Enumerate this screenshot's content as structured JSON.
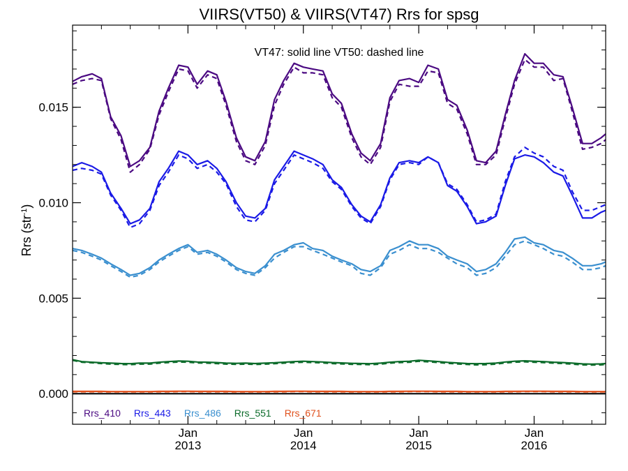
{
  "chart_data": {
    "type": "line",
    "title": "VIIRS(VT50) & VIIRS(VT47)  Rrs for spsg",
    "annotation": "VT47: solid line   VT50: dashed line",
    "ylabel_main": "Rrs (str",
    "ylabel_sup": "-1",
    "ylabel_close": ")",
    "ylim": [
      -0.0016,
      0.0193
    ],
    "xlim": [
      2012.0,
      2016.62
    ],
    "yticks": [
      0.0,
      0.005,
      0.01,
      0.015
    ],
    "ytick_labels": [
      "0.000",
      "0.005",
      "0.010",
      "0.015"
    ],
    "xticks": [
      2013.0,
      2014.0,
      2015.0,
      2016.0
    ],
    "xtick_labels_month": [
      "Jan",
      "Jan",
      "Jan",
      "Jan"
    ],
    "xtick_labels_year": [
      "2013",
      "2014",
      "2015",
      "2016"
    ],
    "zero_line": 0.0,
    "grid": false,
    "legend_position": "bottom-left",
    "line_styles": {
      "solid": "VT47",
      "dashed": "VT50"
    },
    "x": [
      2012.0,
      2012.08,
      2012.17,
      2012.25,
      2012.33,
      2012.42,
      2012.5,
      2012.58,
      2012.67,
      2012.75,
      2012.83,
      2012.92,
      2013.0,
      2013.08,
      2013.17,
      2013.25,
      2013.33,
      2013.42,
      2013.5,
      2013.58,
      2013.67,
      2013.75,
      2013.83,
      2013.92,
      2014.0,
      2014.08,
      2014.17,
      2014.25,
      2014.33,
      2014.42,
      2014.5,
      2014.58,
      2014.67,
      2014.75,
      2014.83,
      2014.92,
      2015.0,
      2015.08,
      2015.17,
      2015.25,
      2015.33,
      2015.42,
      2015.5,
      2015.58,
      2015.67,
      2015.75,
      2015.83,
      2015.92,
      2016.0,
      2016.08,
      2016.17,
      2016.25,
      2016.33,
      2016.42,
      2016.5,
      2016.58,
      2016.62
    ],
    "series": [
      {
        "name": "Rrs_410",
        "color": "#4b0a82",
        "solid": [
          0.01635,
          0.0166,
          0.01675,
          0.0165,
          0.0145,
          0.0135,
          0.0119,
          0.0122,
          0.0129,
          0.0148,
          0.016,
          0.0172,
          0.0171,
          0.0162,
          0.0169,
          0.0167,
          0.0153,
          0.0134,
          0.0124,
          0.0122,
          0.0132,
          0.0154,
          0.0164,
          0.0173,
          0.0171,
          0.017,
          0.0169,
          0.0157,
          0.0152,
          0.0136,
          0.0126,
          0.0122,
          0.0131,
          0.0155,
          0.0164,
          0.0165,
          0.0163,
          0.0172,
          0.017,
          0.0154,
          0.0151,
          0.0138,
          0.0122,
          0.0121,
          0.0127,
          0.0146,
          0.0164,
          0.0178,
          0.0173,
          0.0173,
          0.0167,
          0.0166,
          0.015,
          0.0131,
          0.0131,
          0.0134,
          0.0136
        ],
        "dashed": [
          0.0162,
          0.0164,
          0.0165,
          0.0164,
          0.0144,
          0.0133,
          0.0116,
          0.012,
          0.0128,
          0.0146,
          0.0158,
          0.017,
          0.0169,
          0.016,
          0.0167,
          0.0165,
          0.0151,
          0.0132,
          0.0122,
          0.012,
          0.013,
          0.0151,
          0.0162,
          0.0171,
          0.0168,
          0.0168,
          0.0167,
          0.0155,
          0.015,
          0.0134,
          0.0124,
          0.012,
          0.0129,
          0.0153,
          0.0162,
          0.0161,
          0.0161,
          0.0169,
          0.0168,
          0.0152,
          0.0149,
          0.0136,
          0.012,
          0.012,
          0.0125,
          0.0144,
          0.0162,
          0.0175,
          0.0171,
          0.0171,
          0.0164,
          0.0165,
          0.0148,
          0.0128,
          0.0129,
          0.0131,
          0.0133
        ]
      },
      {
        "name": "Rrs_443",
        "color": "#1a1ae6",
        "solid": [
          0.0119,
          0.0121,
          0.0119,
          0.0116,
          0.0105,
          0.0097,
          0.0089,
          0.0091,
          0.0097,
          0.0111,
          0.0118,
          0.0127,
          0.0125,
          0.012,
          0.0122,
          0.0118,
          0.0111,
          0.01,
          0.0093,
          0.0092,
          0.0097,
          0.0112,
          0.0119,
          0.0127,
          0.0125,
          0.0123,
          0.012,
          0.0112,
          0.0108,
          0.0099,
          0.0093,
          0.009,
          0.0099,
          0.0113,
          0.0121,
          0.0122,
          0.0121,
          0.0124,
          0.0121,
          0.0109,
          0.0106,
          0.0098,
          0.0089,
          0.009,
          0.0093,
          0.0109,
          0.0123,
          0.0125,
          0.0124,
          0.0121,
          0.0116,
          0.0114,
          0.0104,
          0.0092,
          0.0092,
          0.0095,
          0.0096
        ],
        "dashed": [
          0.0117,
          0.0118,
          0.0117,
          0.0115,
          0.0104,
          0.0096,
          0.0087,
          0.0089,
          0.0096,
          0.0109,
          0.0116,
          0.0125,
          0.0123,
          0.0118,
          0.012,
          0.0116,
          0.011,
          0.0098,
          0.0091,
          0.009,
          0.0096,
          0.011,
          0.0117,
          0.0125,
          0.0123,
          0.0121,
          0.0118,
          0.0111,
          0.0107,
          0.0098,
          0.0092,
          0.0089,
          0.0098,
          0.0112,
          0.012,
          0.0121,
          0.012,
          0.0124,
          0.0121,
          0.011,
          0.0107,
          0.0099,
          0.009,
          0.0091,
          0.0094,
          0.0111,
          0.0124,
          0.0129,
          0.0126,
          0.0124,
          0.0119,
          0.0117,
          0.0106,
          0.0096,
          0.0096,
          0.0098,
          0.0099
        ]
      },
      {
        "name": "Rrs_486",
        "color": "#3a8fcf",
        "solid": [
          0.0076,
          0.0075,
          0.0073,
          0.0071,
          0.0068,
          0.0065,
          0.0062,
          0.0063,
          0.0066,
          0.007,
          0.0073,
          0.0076,
          0.0078,
          0.0074,
          0.0075,
          0.0073,
          0.007,
          0.0066,
          0.0064,
          0.0063,
          0.0067,
          0.0073,
          0.0075,
          0.0078,
          0.0079,
          0.0076,
          0.0075,
          0.0072,
          0.007,
          0.0068,
          0.0065,
          0.0064,
          0.0067,
          0.0075,
          0.0077,
          0.008,
          0.0078,
          0.0078,
          0.0076,
          0.0072,
          0.007,
          0.0068,
          0.0064,
          0.0065,
          0.0068,
          0.0074,
          0.0081,
          0.0082,
          0.0079,
          0.0078,
          0.0075,
          0.0074,
          0.0071,
          0.0067,
          0.0067,
          0.0068,
          0.0069
        ],
        "dashed": [
          0.0075,
          0.0074,
          0.0072,
          0.007,
          0.0067,
          0.0064,
          0.0061,
          0.0062,
          0.0065,
          0.0069,
          0.0072,
          0.0075,
          0.0077,
          0.0073,
          0.0074,
          0.0072,
          0.0069,
          0.0065,
          0.0063,
          0.0062,
          0.0066,
          0.0071,
          0.0074,
          0.0077,
          0.0077,
          0.0075,
          0.0073,
          0.0071,
          0.0069,
          0.0067,
          0.0063,
          0.0062,
          0.0066,
          0.0073,
          0.0075,
          0.0078,
          0.0076,
          0.0076,
          0.0074,
          0.0071,
          0.0068,
          0.0066,
          0.0062,
          0.0063,
          0.0066,
          0.0072,
          0.0078,
          0.008,
          0.0078,
          0.0076,
          0.0073,
          0.0072,
          0.0069,
          0.0065,
          0.0065,
          0.0066,
          0.0067
        ]
      },
      {
        "name": "Rrs_551",
        "color": "#0b6b2a",
        "solid": [
          0.00178,
          0.00168,
          0.00165,
          0.00162,
          0.0016,
          0.00158,
          0.00157,
          0.0016,
          0.0016,
          0.00165,
          0.00168,
          0.00171,
          0.0017,
          0.00166,
          0.00165,
          0.00163,
          0.0016,
          0.00159,
          0.0016,
          0.00158,
          0.0016,
          0.00162,
          0.00165,
          0.00168,
          0.0017,
          0.00168,
          0.00166,
          0.00163,
          0.00161,
          0.00159,
          0.00158,
          0.00157,
          0.0016,
          0.00165,
          0.00168,
          0.0017,
          0.00175,
          0.00172,
          0.00168,
          0.00164,
          0.00161,
          0.00158,
          0.00157,
          0.00158,
          0.0016,
          0.00166,
          0.0017,
          0.00172,
          0.0017,
          0.00168,
          0.00165,
          0.00163,
          0.0016,
          0.00156,
          0.00155,
          0.00156,
          0.00158
        ],
        "dashed": [
          0.00175,
          0.00165,
          0.00162,
          0.00158,
          0.00155,
          0.00153,
          0.00152,
          0.00155,
          0.00155,
          0.0016,
          0.00163,
          0.00166,
          0.00165,
          0.00161,
          0.0016,
          0.00158,
          0.00155,
          0.00154,
          0.00155,
          0.00153,
          0.00155,
          0.00157,
          0.0016,
          0.00163,
          0.00165,
          0.00163,
          0.00161,
          0.00158,
          0.00156,
          0.00154,
          0.00153,
          0.00152,
          0.00155,
          0.0016,
          0.00163,
          0.00165,
          0.0017,
          0.00167,
          0.00163,
          0.00159,
          0.00156,
          0.00153,
          0.00151,
          0.00152,
          0.00155,
          0.00161,
          0.00165,
          0.00167,
          0.00165,
          0.00163,
          0.0016,
          0.00158,
          0.00155,
          0.00151,
          0.0015,
          0.00151,
          0.00153
        ]
      },
      {
        "name": "Rrs_671",
        "color": "#e0501c",
        "solid": [
          0.00012,
          0.00012,
          0.00012,
          0.00012,
          0.00011,
          0.00011,
          0.00011,
          0.00011,
          0.00011,
          0.00012,
          0.00012,
          0.00013,
          0.00013,
          0.00012,
          0.00012,
          0.00012,
          0.00012,
          0.00011,
          0.00011,
          0.00011,
          0.00011,
          0.00012,
          0.00012,
          0.00013,
          0.00013,
          0.00012,
          0.00012,
          0.00012,
          0.00012,
          0.00011,
          0.00011,
          0.00011,
          0.00011,
          0.00012,
          0.00012,
          0.00013,
          0.00013,
          0.00013,
          0.00012,
          0.00012,
          0.00012,
          0.00011,
          0.00011,
          0.00011,
          0.00011,
          0.00012,
          0.00012,
          0.00013,
          0.00013,
          0.00013,
          0.00012,
          0.00012,
          0.00012,
          0.00011,
          0.00011,
          0.00011,
          0.00011
        ],
        "dashed": [
          0.0001,
          0.0001,
          0.0001,
          0.0001,
          9e-05,
          9e-05,
          9e-05,
          9e-05,
          9e-05,
          0.0001,
          0.0001,
          0.00011,
          0.00011,
          0.0001,
          0.0001,
          0.0001,
          0.0001,
          9e-05,
          9e-05,
          9e-05,
          9e-05,
          0.0001,
          0.0001,
          0.00011,
          0.00011,
          0.0001,
          0.0001,
          0.0001,
          0.0001,
          9e-05,
          9e-05,
          9e-05,
          9e-05,
          0.0001,
          0.0001,
          0.00011,
          0.00011,
          0.00011,
          0.0001,
          0.0001,
          0.0001,
          9e-05,
          9e-05,
          9e-05,
          9e-05,
          0.0001,
          0.0001,
          0.00011,
          0.00011,
          0.00011,
          0.0001,
          0.0001,
          0.0001,
          9e-05,
          9e-05,
          9e-05,
          9e-05
        ]
      }
    ]
  }
}
